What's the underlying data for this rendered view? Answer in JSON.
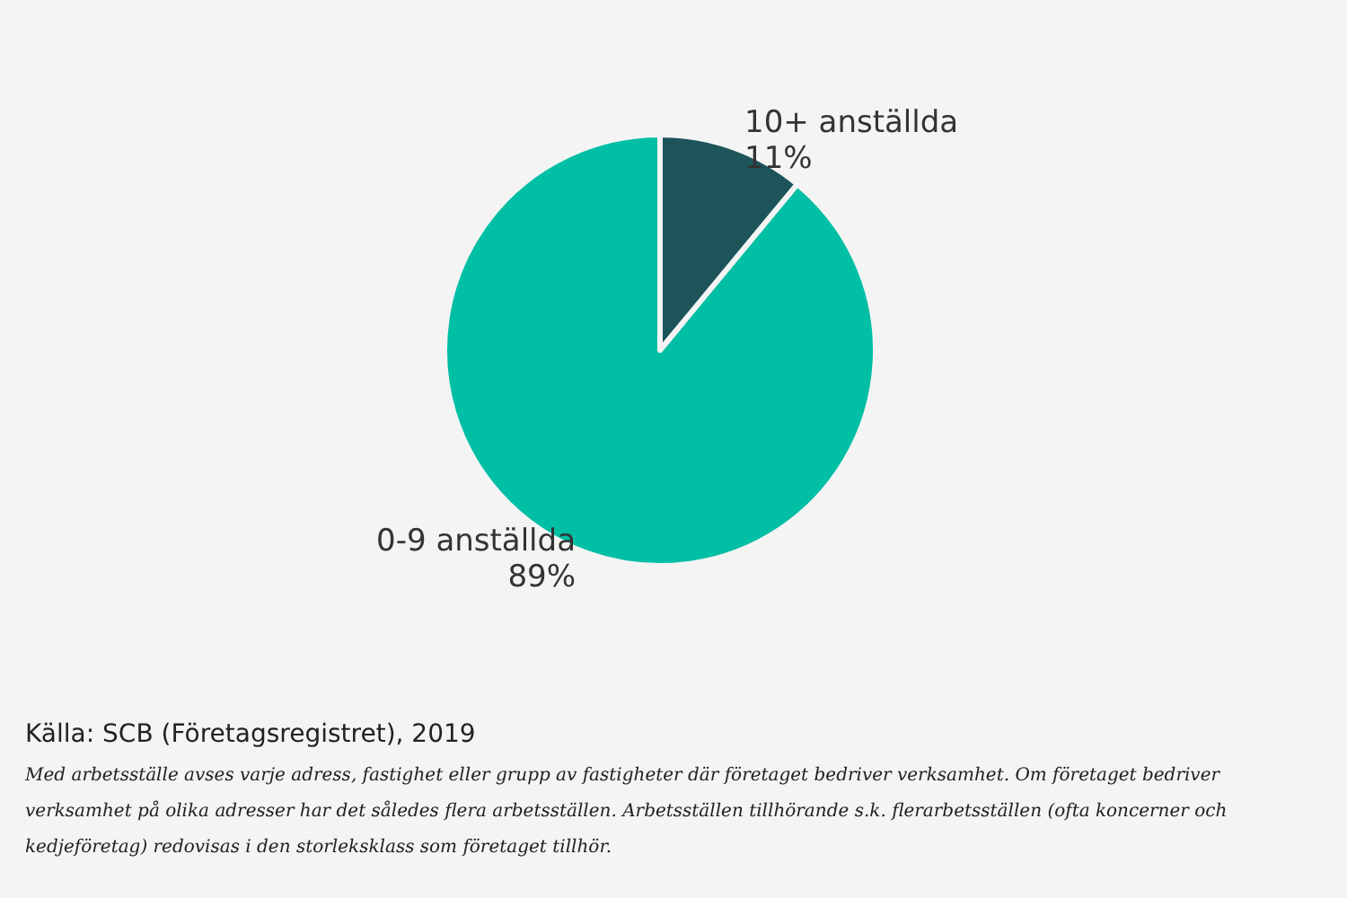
{
  "chart_data": {
    "type": "pie",
    "categories": [
      "10+ anställda",
      "0-9 anställda"
    ],
    "values": [
      11,
      89
    ],
    "colors": [
      "#1d545a",
      "#00bfa5"
    ],
    "value_labels": [
      "11%",
      "89%"
    ],
    "legend": false,
    "annotations": [
      "Källa: SCB (Företagsregistret), 2019",
      "Med arbetsställe avses varje adress, fastighet eller grupp av fastigheter där företaget bedriver verksamhet. Om företaget bedriver verksamhet på olika adresser har det således flera arbetsställen. Arbetsställen tillhörande s.k. flerarbetsställen (ofta koncerner och kedjeföretag) redovisas i den storleksklass som företaget tillhör."
    ]
  }
}
